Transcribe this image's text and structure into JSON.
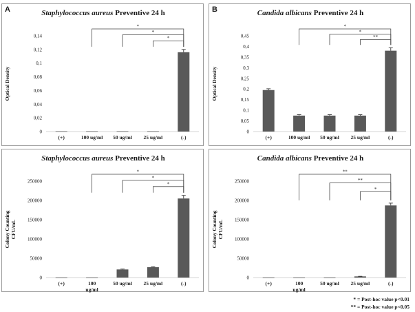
{
  "panel_letters": {
    "left": "A",
    "right": "B"
  },
  "footnotes": [
    "* = Post-hoc value p<0.01",
    "** = Post-hoc value p<0.05"
  ],
  "chart_data": [
    {
      "type": "bar",
      "title_italic": "Staphylococcus aureus",
      "title_rest": " Preventive 24 h",
      "ylabel": "Optical Density",
      "categories": [
        [
          "(+)"
        ],
        [
          "100 ug/ml"
        ],
        [
          "50 ug/ml"
        ],
        [
          "25 ug/ml"
        ],
        [
          "(-)"
        ]
      ],
      "values": [
        0.0005,
        0.0005,
        0.0005,
        0.0005,
        0.116
      ],
      "errors": [
        0,
        0,
        0,
        0,
        0.004
      ],
      "ylim": [
        0,
        0.14
      ],
      "yticks": [
        "0",
        "0,02",
        "0,04",
        "0,06",
        "0,08",
        "0,1",
        "0,12",
        "0,14"
      ],
      "significance": [
        {
          "from": 1,
          "to": 4,
          "label": "*"
        },
        {
          "from": 2,
          "to": 4,
          "label": "*"
        },
        {
          "from": 3,
          "to": 4,
          "label": "*"
        }
      ]
    },
    {
      "type": "bar",
      "title_italic": "Candida albicans",
      "title_rest": " Preventive 24 h",
      "ylabel": "Optical Density",
      "categories": [
        [
          "(+)"
        ],
        [
          "100 ug/ml"
        ],
        [
          "50 ug/ml"
        ],
        [
          "25 ug/ml"
        ],
        [
          "(-)"
        ]
      ],
      "values": [
        0.195,
        0.075,
        0.075,
        0.075,
        0.38
      ],
      "errors": [
        0.006,
        0.004,
        0.004,
        0.004,
        0.014
      ],
      "ylim": [
        0,
        0.45
      ],
      "yticks": [
        "0",
        "0,05",
        "0,1",
        "0,15",
        "0,2",
        "0,25",
        "0,3",
        "0,35",
        "0,4",
        "0,45"
      ],
      "significance": [
        {
          "from": 1,
          "to": 4,
          "label": "*"
        },
        {
          "from": 2,
          "to": 4,
          "label": "*"
        },
        {
          "from": 3,
          "to": 4,
          "label": "**"
        }
      ]
    },
    {
      "type": "bar",
      "title_italic": "Staphylococcus aureus",
      "title_rest": " Preventive 24 h",
      "ylabel": [
        "Colony Counting",
        "CFU/mL"
      ],
      "categories": [
        [
          "(+)"
        ],
        [
          "100",
          "ug/ml"
        ],
        [
          "50 ug/ml"
        ],
        [
          "25 ug/ml"
        ],
        [
          "(-)"
        ]
      ],
      "values": [
        500,
        500,
        21000,
        27000,
        205000
      ],
      "errors": [
        0,
        0,
        1200,
        1200,
        8000
      ],
      "ylim": [
        0,
        250000
      ],
      "yticks": [
        "0",
        "50000",
        "100000",
        "150000",
        "200000",
        "250000"
      ],
      "significance": [
        {
          "from": 1,
          "to": 4,
          "label": "*"
        },
        {
          "from": 2,
          "to": 4,
          "label": "*"
        },
        {
          "from": 3,
          "to": 4,
          "label": "*"
        }
      ]
    },
    {
      "type": "bar",
      "title_italic": "Candida albicans",
      "title_rest": " Preventive 24 h",
      "ylabel": [
        "Colony Counting",
        "CFU/mL"
      ],
      "categories": [
        [
          "(+)"
        ],
        [
          "100",
          "ug/ml"
        ],
        [
          "50 ug/ml"
        ],
        [
          "25 ug/ml"
        ],
        [
          "(-)"
        ]
      ],
      "values": [
        500,
        500,
        500,
        3000,
        187000
      ],
      "errors": [
        0,
        0,
        0,
        300,
        6000
      ],
      "ylim": [
        0,
        250000
      ],
      "yticks": [
        "0",
        "50000",
        "100000",
        "150000",
        "200000",
        "250000"
      ],
      "significance": [
        {
          "from": 1,
          "to": 4,
          "label": "**"
        },
        {
          "from": 2,
          "to": 4,
          "label": "**"
        },
        {
          "from": 3,
          "to": 4,
          "label": "*"
        }
      ]
    }
  ]
}
